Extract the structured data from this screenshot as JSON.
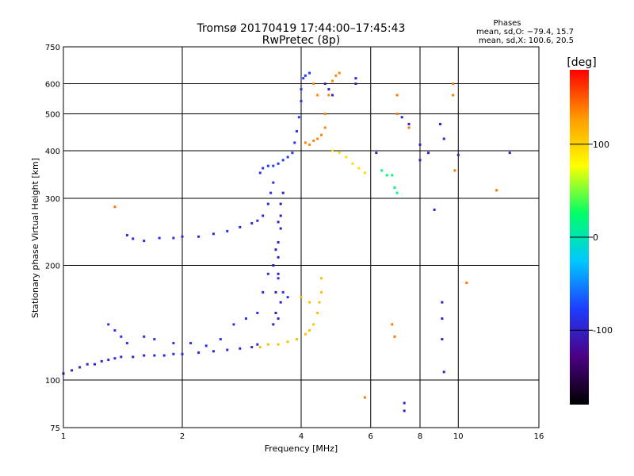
{
  "chart_data": {
    "type": "scatter",
    "title": "Tromsø 20170419 17:44:00–17:45:43",
    "subtitle": "RwPretec (8p)",
    "stats": {
      "heading": "Phases",
      "line1": "mean, sd,O: −79.4, 15.7",
      "line2": "mean, sd,X: 100.6, 20.5"
    },
    "xlabel": "Frequency [MHz]",
    "ylabel": "Stationary phase Virtual Height [km]",
    "x_scale": "log",
    "y_scale": "log",
    "xlim": [
      1,
      16
    ],
    "ylim": [
      75,
      750
    ],
    "x_ticks": [
      1,
      2,
      4,
      6,
      8,
      10,
      16
    ],
    "y_ticks": [
      75,
      100,
      200,
      300,
      400,
      500,
      600,
      750
    ],
    "grid": true,
    "colorbar": {
      "label": "[deg]",
      "range": [
        -180,
        180
      ],
      "ticks": [
        100,
        0,
        -100
      ],
      "colors": [
        "#000000",
        "#4b0082",
        "#1e3cff",
        "#00c8ff",
        "#00ff66",
        "#ffff00",
        "#ff9900",
        "#ff0000"
      ]
    },
    "traces": [
      {
        "name": "",
        "phase": -95,
        "points": [
          [
            1.0,
            104
          ],
          [
            1.05,
            106
          ],
          [
            1.1,
            108
          ],
          [
            1.15,
            110
          ],
          [
            1.2,
            110
          ],
          [
            1.25,
            112
          ],
          [
            1.3,
            113
          ],
          [
            1.35,
            114
          ],
          [
            1.4,
            115
          ],
          [
            1.5,
            115
          ],
          [
            1.6,
            116
          ],
          [
            1.7,
            116
          ],
          [
            1.8,
            116
          ],
          [
            1.9,
            117
          ],
          [
            2.0,
            117
          ],
          [
            2.2,
            118
          ],
          [
            2.4,
            119
          ],
          [
            2.6,
            120
          ],
          [
            2.8,
            121
          ],
          [
            3.0,
            122
          ],
          [
            3.1,
            124
          ]
        ]
      },
      {
        "name": "",
        "phase": -85,
        "points": [
          [
            1.3,
            140
          ],
          [
            1.35,
            135
          ],
          [
            1.4,
            130
          ],
          [
            1.45,
            125
          ],
          [
            1.6,
            130
          ],
          [
            1.7,
            128
          ],
          [
            1.9,
            125
          ],
          [
            2.1,
            125
          ],
          [
            2.3,
            123
          ],
          [
            2.5,
            128
          ],
          [
            2.7,
            140
          ],
          [
            2.9,
            145
          ],
          [
            3.1,
            150
          ],
          [
            3.2,
            170
          ],
          [
            3.3,
            190
          ],
          [
            3.4,
            200
          ],
          [
            3.5,
            185
          ],
          [
            3.6,
            170
          ],
          [
            3.7,
            165
          ]
        ]
      },
      {
        "name": "",
        "phase": -90,
        "points": [
          [
            1.45,
            240
          ],
          [
            1.5,
            235
          ],
          [
            1.6,
            232
          ],
          [
            1.75,
            236
          ],
          [
            1.9,
            236
          ],
          [
            2.0,
            238
          ],
          [
            2.2,
            238
          ],
          [
            2.4,
            242
          ],
          [
            2.6,
            246
          ],
          [
            2.8,
            252
          ],
          [
            3.0,
            258
          ],
          [
            3.1,
            262
          ],
          [
            3.2,
            270
          ],
          [
            3.3,
            290
          ],
          [
            3.35,
            310
          ],
          [
            3.4,
            330
          ]
        ]
      },
      {
        "name": "",
        "phase": -105,
        "points": [
          [
            3.4,
            140
          ],
          [
            3.45,
            150
          ],
          [
            3.45,
            170
          ],
          [
            3.5,
            190
          ],
          [
            3.5,
            210
          ],
          [
            3.5,
            230
          ],
          [
            3.55,
            250
          ],
          [
            3.55,
            270
          ],
          [
            3.55,
            290
          ],
          [
            3.6,
            310
          ],
          [
            3.55,
            160
          ],
          [
            3.5,
            145
          ],
          [
            3.4,
            200
          ],
          [
            3.45,
            220
          ],
          [
            3.5,
            260
          ]
        ]
      },
      {
        "name": "",
        "phase": -80,
        "points": [
          [
            3.15,
            350
          ],
          [
            3.2,
            360
          ],
          [
            3.3,
            365
          ],
          [
            3.4,
            365
          ],
          [
            3.5,
            370
          ],
          [
            3.6,
            378
          ],
          [
            3.7,
            385
          ],
          [
            3.8,
            395
          ],
          [
            3.85,
            420
          ],
          [
            3.9,
            450
          ],
          [
            3.95,
            490
          ],
          [
            4.0,
            540
          ],
          [
            4.0,
            580
          ],
          [
            4.05,
            620
          ],
          [
            4.1,
            630
          ],
          [
            4.2,
            640
          ]
        ]
      },
      {
        "name": "",
        "phase": 110,
        "points": [
          [
            3.15,
            122
          ],
          [
            3.3,
            124
          ],
          [
            3.5,
            124
          ],
          [
            3.7,
            126
          ],
          [
            3.9,
            128
          ],
          [
            4.1,
            132
          ],
          [
            4.2,
            135
          ],
          [
            4.3,
            140
          ],
          [
            4.4,
            150
          ],
          [
            4.45,
            160
          ],
          [
            4.5,
            170
          ],
          [
            4.5,
            185
          ],
          [
            4.2,
            160
          ],
          [
            4.0,
            165
          ]
        ]
      },
      {
        "name": "",
        "phase": 135,
        "points": [
          [
            4.1,
            420
          ],
          [
            4.2,
            415
          ],
          [
            4.3,
            425
          ],
          [
            4.4,
            430
          ],
          [
            4.5,
            440
          ],
          [
            4.6,
            460
          ],
          [
            4.6,
            500
          ],
          [
            4.7,
            560
          ],
          [
            4.8,
            610
          ],
          [
            4.9,
            630
          ],
          [
            5.0,
            640
          ],
          [
            4.3,
            600
          ],
          [
            4.4,
            560
          ]
        ]
      },
      {
        "name": "",
        "phase": 95,
        "points": [
          [
            4.8,
            400
          ],
          [
            5.0,
            395
          ],
          [
            5.2,
            385
          ],
          [
            5.4,
            370
          ],
          [
            5.6,
            360
          ],
          [
            5.8,
            350
          ]
        ]
      },
      {
        "name": "",
        "phase": -100,
        "points": [
          [
            5.5,
            620
          ],
          [
            5.5,
            600
          ],
          [
            4.6,
            600
          ],
          [
            4.7,
            580
          ],
          [
            4.8,
            560
          ]
        ]
      },
      {
        "name": "",
        "phase": 20,
        "points": [
          [
            6.4,
            355
          ],
          [
            6.6,
            345
          ],
          [
            6.8,
            345
          ],
          [
            6.9,
            320
          ],
          [
            7.0,
            310
          ]
        ]
      },
      {
        "name": "",
        "phase": -100,
        "points": [
          [
            6.2,
            395
          ],
          [
            7.2,
            490
          ],
          [
            7.5,
            470
          ],
          [
            8.0,
            415
          ],
          [
            8.4,
            395
          ],
          [
            9.0,
            470
          ],
          [
            9.2,
            430
          ],
          [
            10.0,
            390
          ],
          [
            13.5,
            395
          ],
          [
            8.0,
            378
          ],
          [
            8.7,
            280
          ],
          [
            9.1,
            160
          ],
          [
            9.1,
            145
          ],
          [
            9.1,
            128
          ],
          [
            9.2,
            105
          ],
          [
            7.3,
            87
          ],
          [
            7.3,
            83
          ]
        ]
      },
      {
        "name": "",
        "phase": 140,
        "points": [
          [
            7.0,
            560
          ],
          [
            7.0,
            500
          ],
          [
            9.7,
            600
          ],
          [
            9.7,
            560
          ],
          [
            9.8,
            355
          ],
          [
            7.5,
            460
          ],
          [
            5.8,
            90
          ],
          [
            6.8,
            140
          ],
          [
            6.9,
            130
          ],
          [
            10.5,
            180
          ],
          [
            12.5,
            315
          ],
          [
            1.35,
            285
          ]
        ]
      }
    ]
  }
}
